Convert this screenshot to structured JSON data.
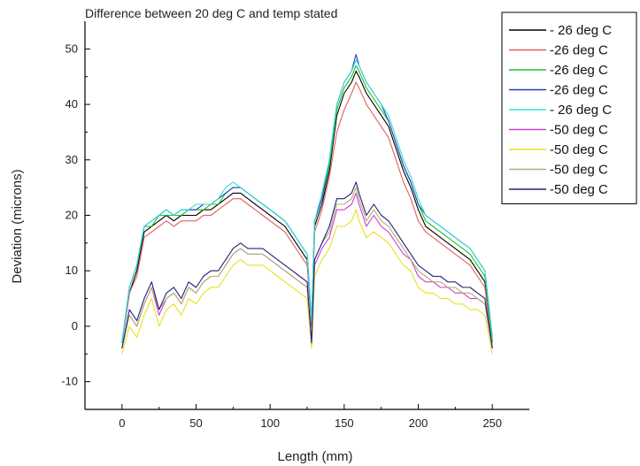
{
  "chart_data": {
    "type": "line",
    "title": "Difference between 20 deg C and temp stated",
    "xlabel": "Length (mm)",
    "ylabel": "Deviation (microns)",
    "xlim": [
      -25,
      275
    ],
    "ylim": [
      -15,
      55
    ],
    "xticks": [
      0,
      50,
      100,
      150,
      200,
      250
    ],
    "yticks": [
      -10,
      0,
      10,
      20,
      30,
      40,
      50
    ],
    "legend_position": "top-right",
    "grid": false,
    "x": [
      0,
      5,
      10,
      15,
      20,
      25,
      30,
      35,
      40,
      45,
      50,
      55,
      60,
      65,
      70,
      75,
      80,
      85,
      90,
      95,
      100,
      105,
      110,
      115,
      120,
      125,
      128,
      130,
      135,
      140,
      145,
      150,
      155,
      158,
      160,
      165,
      170,
      175,
      180,
      185,
      190,
      195,
      200,
      205,
      210,
      215,
      220,
      225,
      230,
      235,
      240,
      245,
      250
    ],
    "series": [
      {
        "name": "- 26 deg C",
        "color": "#000000",
        "values": [
          -3,
          6,
          10,
          17,
          18,
          19,
          20,
          19,
          20,
          20,
          20,
          21,
          21,
          22,
          23,
          24,
          24,
          23,
          22,
          21,
          20,
          19,
          18,
          16,
          14,
          12,
          0,
          18,
          22,
          28,
          38,
          42,
          44,
          46,
          45,
          42,
          40,
          38,
          36,
          32,
          28,
          25,
          21,
          18,
          17,
          16,
          15,
          14,
          13,
          12,
          10,
          8,
          -3
        ]
      },
      {
        "name": "-26 deg C",
        "color": "#e06060",
        "values": [
          -3,
          6,
          9,
          16,
          17,
          18,
          19,
          18,
          19,
          19,
          19,
          20,
          20,
          21,
          22,
          23,
          23,
          22,
          21,
          20,
          19,
          18,
          17,
          15,
          13,
          11,
          0,
          17,
          21,
          27,
          35,
          39,
          42,
          44,
          43,
          40,
          38,
          36,
          34,
          30,
          26,
          23,
          19,
          17,
          16,
          15,
          14,
          13,
          12,
          11,
          9,
          7,
          -4
        ]
      },
      {
        "name": "-26 deg C",
        "color": "#22c022",
        "values": [
          -3,
          7,
          11,
          18,
          18,
          20,
          20,
          20,
          20,
          21,
          21,
          21,
          22,
          22,
          24,
          25,
          25,
          24,
          23,
          22,
          21,
          20,
          19,
          17,
          15,
          13,
          1,
          19,
          23,
          29,
          39,
          43,
          45,
          47,
          46,
          43,
          41,
          39,
          37,
          33,
          29,
          26,
          22,
          19,
          18,
          17,
          16,
          15,
          14,
          13,
          11,
          9,
          -3
        ]
      },
      {
        "name": "-26 deg C",
        "color": "#1f3fbf",
        "values": [
          -3,
          7,
          11,
          18,
          19,
          20,
          21,
          20,
          21,
          21,
          21,
          22,
          22,
          23,
          24,
          25,
          25,
          24,
          23,
          22,
          21,
          20,
          19,
          17,
          15,
          13,
          1,
          19,
          23,
          30,
          40,
          44,
          46,
          49,
          47,
          44,
          42,
          40,
          37,
          33,
          29,
          26,
          22,
          20,
          19,
          18,
          17,
          16,
          15,
          14,
          12,
          10,
          -2
        ]
      },
      {
        "name": "- 26 deg C",
        "color": "#33dede",
        "values": [
          -3,
          7,
          11,
          18,
          19,
          20,
          21,
          20,
          21,
          21,
          22,
          22,
          22,
          23,
          25,
          26,
          25,
          24,
          23,
          22,
          21,
          20,
          19,
          17,
          15,
          13,
          1,
          19,
          24,
          30,
          40,
          44,
          46,
          48,
          47,
          44,
          42,
          40,
          38,
          34,
          30,
          27,
          23,
          20,
          19,
          18,
          17,
          16,
          15,
          14,
          12,
          10,
          -2
        ]
      },
      {
        "name": "-50 deg C",
        "color": "#d040d0",
        "values": [
          -4,
          2,
          0,
          4,
          7,
          2,
          5,
          6,
          4,
          7,
          6,
          8,
          9,
          9,
          11,
          13,
          14,
          13,
          13,
          13,
          12,
          11,
          10,
          9,
          8,
          7,
          -3,
          11,
          14,
          16,
          21,
          21,
          22,
          24,
          22,
          18,
          20,
          18,
          17,
          15,
          13,
          12,
          9,
          8,
          8,
          7,
          7,
          6,
          6,
          5,
          5,
          4,
          -4
        ]
      },
      {
        "name": "-50 deg C",
        "color": "#e8e020",
        "values": [
          -5,
          0,
          -2,
          2,
          5,
          0,
          3,
          4,
          2,
          5,
          4,
          6,
          7,
          7,
          9,
          11,
          12,
          11,
          11,
          11,
          10,
          9,
          8,
          7,
          6,
          5,
          -4,
          9,
          12,
          14,
          18,
          18,
          19,
          21,
          19,
          16,
          17,
          16,
          15,
          13,
          11,
          10,
          7,
          6,
          6,
          5,
          5,
          4,
          4,
          3,
          3,
          2,
          -5
        ]
      },
      {
        "name": "-50 deg C",
        "color": "#b0b070",
        "values": [
          -4,
          2,
          0,
          4,
          7,
          3,
          5,
          6,
          4,
          7,
          6,
          8,
          9,
          9,
          11,
          13,
          14,
          13,
          13,
          13,
          12,
          11,
          10,
          9,
          8,
          7,
          -3,
          12,
          15,
          17,
          22,
          22,
          23,
          25,
          23,
          19,
          21,
          19,
          18,
          16,
          14,
          12,
          10,
          9,
          8,
          8,
          7,
          7,
          6,
          6,
          5,
          4,
          -4
        ]
      },
      {
        "name": "-50 deg C",
        "color": "#20207a",
        "values": [
          -4,
          3,
          1,
          5,
          8,
          3,
          6,
          7,
          5,
          8,
          7,
          9,
          10,
          10,
          12,
          14,
          15,
          14,
          14,
          14,
          13,
          12,
          11,
          10,
          9,
          8,
          -3,
          12,
          15,
          18,
          23,
          23,
          24,
          26,
          24,
          20,
          22,
          20,
          19,
          17,
          15,
          13,
          11,
          10,
          9,
          9,
          8,
          8,
          7,
          7,
          6,
          5,
          -4
        ]
      }
    ]
  }
}
